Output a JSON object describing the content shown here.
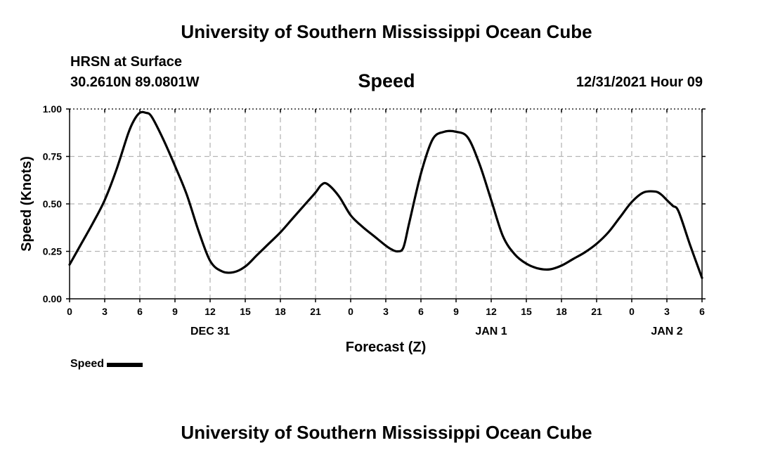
{
  "header": {
    "title_top": "University of Southern Mississippi Ocean Cube",
    "title_bottom": "University of Southern Mississippi Ocean Cube",
    "station": "HRSN at Surface",
    "coords": "30.2610N  89.0801W",
    "datetime": "12/31/2021 Hour 09"
  },
  "chart_data": {
    "type": "line",
    "title": "Speed",
    "xlabel": "Forecast (Z)",
    "ylabel": "Speed (Knots)",
    "xlim": [
      0,
      54
    ],
    "ylim": [
      0,
      1
    ],
    "grid": true,
    "legend": "bottom-left",
    "x_ticks": [
      0,
      3,
      6,
      9,
      12,
      15,
      18,
      21,
      24,
      27,
      30,
      33,
      36,
      39,
      42,
      45,
      48,
      51,
      54
    ],
    "x_tick_labels": [
      "0",
      "3",
      "6",
      "9",
      "12",
      "15",
      "18",
      "21",
      "0",
      "3",
      "6",
      "9",
      "12",
      "15",
      "18",
      "21",
      "0",
      "3",
      "6"
    ],
    "y_ticks": [
      0,
      0.25,
      0.5,
      0.75,
      1.0
    ],
    "y_tick_labels": [
      "0.00",
      "0.25",
      "0.50",
      "0.75",
      "1.00"
    ],
    "date_labels": [
      {
        "x": 12,
        "label": "DEC 31"
      },
      {
        "x": 36,
        "label": "JAN 1"
      },
      {
        "x": 51,
        "label": "JAN 2"
      }
    ],
    "series": [
      {
        "name": "Speed",
        "color": "#000000",
        "x": [
          0,
          1,
          2,
          3,
          4,
          5,
          5.5,
          6,
          6.5,
          7,
          8,
          9,
          10,
          11,
          12,
          13,
          14,
          15,
          16,
          17,
          18,
          19,
          20,
          21,
          21.5,
          22,
          23,
          24,
          25,
          26,
          27,
          27.5,
          28,
          28.5,
          29,
          30,
          31,
          32,
          33,
          34,
          35,
          36,
          37,
          38,
          39,
          40,
          41,
          42,
          43,
          44,
          45,
          46,
          47,
          48,
          49,
          50,
          50.5,
          51,
          51.5,
          52,
          53,
          54
        ],
        "values": [
          0.18,
          0.29,
          0.4,
          0.52,
          0.68,
          0.87,
          0.94,
          0.98,
          0.98,
          0.96,
          0.84,
          0.7,
          0.55,
          0.36,
          0.2,
          0.145,
          0.14,
          0.17,
          0.23,
          0.29,
          0.35,
          0.42,
          0.49,
          0.56,
          0.6,
          0.605,
          0.54,
          0.44,
          0.38,
          0.33,
          0.28,
          0.26,
          0.25,
          0.27,
          0.4,
          0.66,
          0.84,
          0.88,
          0.88,
          0.85,
          0.71,
          0.52,
          0.33,
          0.235,
          0.185,
          0.16,
          0.155,
          0.175,
          0.21,
          0.245,
          0.29,
          0.35,
          0.43,
          0.51,
          0.56,
          0.565,
          0.55,
          0.52,
          0.49,
          0.46,
          0.28,
          0.11
        ]
      }
    ]
  },
  "legend": {
    "label": "Speed"
  }
}
